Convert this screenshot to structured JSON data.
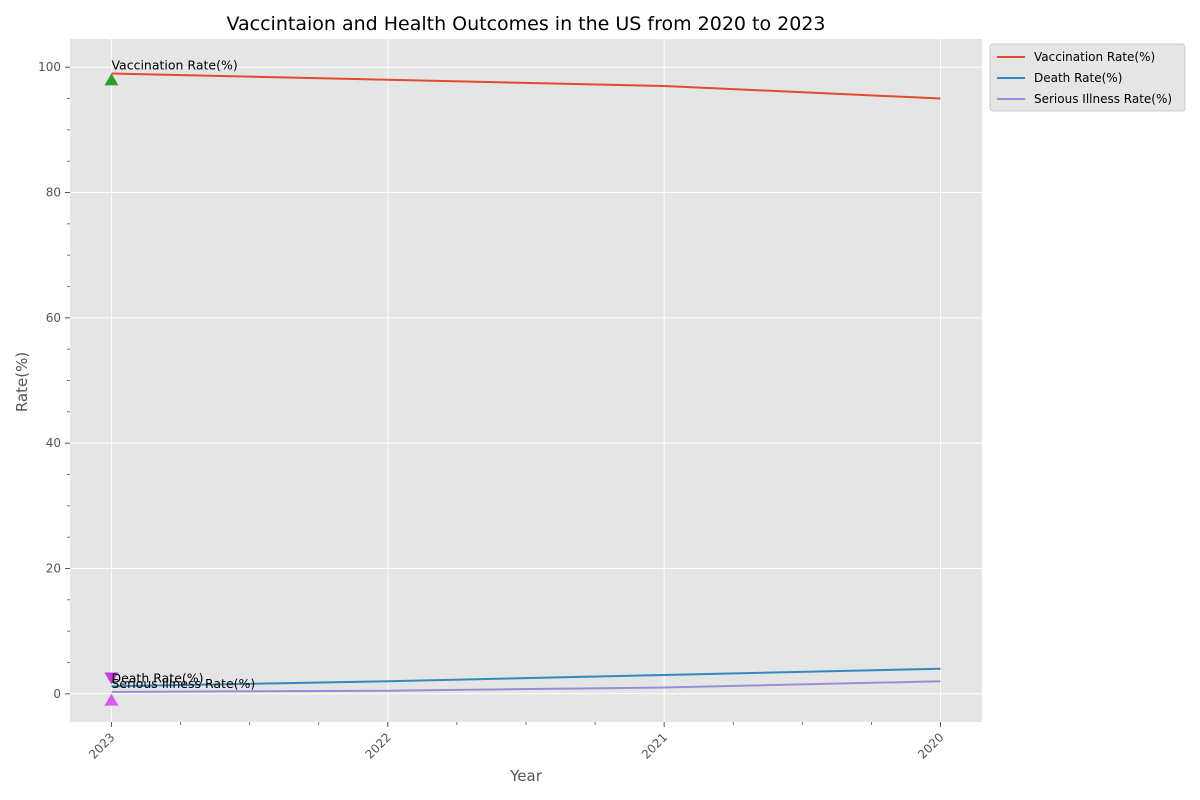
{
  "chart_data": {
    "type": "line",
    "title": "Vaccintaion and Health Outcomes in the US from 2020 to 2023",
    "xlabel": "Year",
    "ylabel": "Rate(%)",
    "x": [
      2023,
      2022,
      2021,
      2020
    ],
    "x_tick_labels": [
      "2023",
      "2022",
      "2021",
      "2020"
    ],
    "x_reversed": true,
    "xlim": [
      2023.15,
      2019.85
    ],
    "ylim": [
      -4.5,
      104.5
    ],
    "y_ticks": [
      0,
      20,
      40,
      60,
      80,
      100
    ],
    "grid": true,
    "legend_position": "outside-top-right",
    "series": [
      {
        "name": "Vaccination Rate(%)",
        "color": "#E24A33",
        "values": [
          99,
          98,
          97,
          95
        ]
      },
      {
        "name": "Death Rate(%)",
        "color": "#348ABD",
        "values": [
          1.2,
          2,
          3,
          4
        ]
      },
      {
        "name": "Serious Illness Rate(%)",
        "color": "#988ED5",
        "values": [
          0.3,
          0.5,
          1,
          2
        ]
      }
    ],
    "annotations": [
      {
        "text": "Vaccination Rate(%)",
        "x": 2023,
        "y": 99,
        "marker": "triangle-up",
        "marker_y": 98,
        "marker_color": "#2CA02C"
      },
      {
        "text": "Death Rate(%)",
        "x": 2023,
        "y": 1.2,
        "marker": "triangle-down",
        "marker_y": 2.5,
        "marker_color": "#C83CDC"
      },
      {
        "text": "Serious Illness Rate(%)",
        "x": 2023,
        "y": 0.3,
        "marker": "triangle-up",
        "marker_y": -1,
        "marker_color": "#DC5AF0"
      }
    ]
  }
}
